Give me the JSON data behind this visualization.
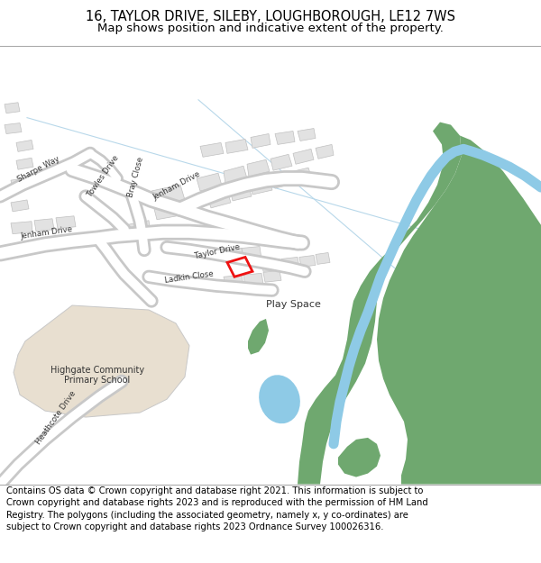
{
  "title": "16, TAYLOR DRIVE, SILEBY, LOUGHBOROUGH, LE12 7WS",
  "subtitle": "Map shows position and indicative extent of the property.",
  "footer": "Contains OS data © Crown copyright and database right 2021. This information is subject to Crown copyright and database rights 2023 and is reproduced with the permission of HM Land Registry. The polygons (including the associated geometry, namely x, y co-ordinates) are subject to Crown copyright and database rights 2023 Ordnance Survey 100026316.",
  "bg_color": "#f5f5f5",
  "map_bg": "#ffffff",
  "building_color": "#e2e2e2",
  "building_outline": "#c0c0c0",
  "school_color": "#e8dfd0",
  "school_outline": "#c8c8c8",
  "green_color": "#6fa86f",
  "water_color": "#8ecae6",
  "river_color": "#8ecae6",
  "highlight_color": "#ee1111",
  "line_color": "#b8d8ea",
  "road_fill": "#ffffff",
  "road_outline": "#c8c8c8",
  "title_fontsize": 10.5,
  "subtitle_fontsize": 9.5,
  "footer_fontsize": 7.2
}
